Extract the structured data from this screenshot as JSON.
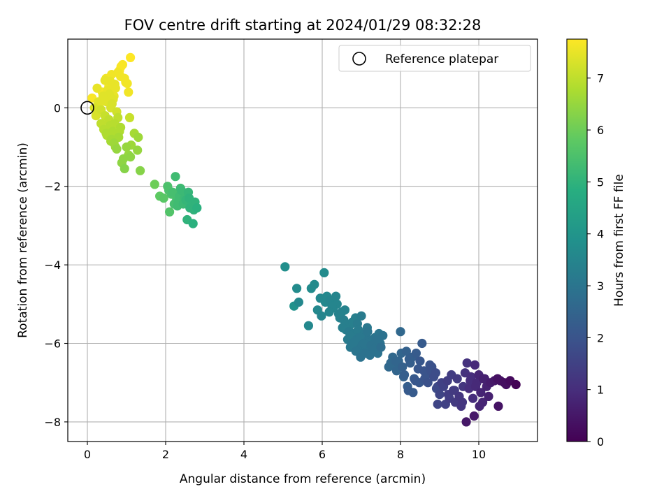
{
  "chart_data": {
    "type": "scatter",
    "title": "FOV centre drift starting at 2024/01/29 08:32:28",
    "xlabel": "Angular distance from reference (arcmin)",
    "ylabel": "Rotation from reference (arcmin)",
    "xlim": [
      -0.5,
      11.5
    ],
    "ylim": [
      -8.5,
      1.75
    ],
    "xticks": [
      0,
      2,
      4,
      6,
      8,
      10
    ],
    "yticks": [
      -8,
      -6,
      -4,
      -2,
      0
    ],
    "grid": true,
    "legend": {
      "placement": "top-right",
      "entries": [
        {
          "label": "Reference platepar",
          "marker": "open-circle"
        }
      ]
    },
    "reference_point": {
      "x": 0,
      "y": 0
    },
    "colorbar": {
      "label": "Hours from first FF file",
      "range": [
        0,
        7.75
      ],
      "ticks": [
        0,
        1,
        2,
        3,
        4,
        5,
        6,
        7
      ],
      "colormap": "viridis"
    },
    "series": [
      {
        "x": [
          0.12,
          0.22,
          0.3,
          0.38,
          0.45,
          0.5,
          0.55,
          0.62,
          0.68,
          0.75,
          0.82,
          0.9,
          0.98,
          1.05,
          1.1,
          0.25,
          0.35,
          0.42,
          0.48,
          0.56,
          0.63,
          0.7,
          0.78,
          0.86,
          0.95,
          1.02,
          1.08,
          0.18,
          0.28,
          0.4,
          0.52,
          0.6,
          0.72,
          0.85,
          0.58,
          0.66
        ],
        "y": [
          0.25,
          -0.2,
          0.05,
          0.4,
          0.7,
          0.15,
          0.55,
          0.85,
          0.3,
          -0.1,
          0.95,
          1.1,
          0.65,
          0.4,
          1.28,
          0.5,
          -0.05,
          0.2,
          0.75,
          0.35,
          0.1,
          0.6,
          0.9,
          1.05,
          0.75,
          0.62,
          -0.25,
          0.0,
          0.15,
          0.3,
          0.45,
          0.0,
          0.5,
          0.8,
          0.68,
          0.22
        ],
        "t": [
          7.7,
          7.3,
          7.5,
          7.6,
          7.5,
          7.4,
          7.6,
          7.6,
          7.5,
          7.2,
          7.7,
          7.7,
          7.6,
          7.6,
          7.75,
          7.5,
          7.2,
          7.4,
          7.6,
          7.4,
          7.3,
          7.5,
          7.6,
          7.7,
          7.6,
          7.6,
          7.1,
          7.3,
          7.4,
          7.4,
          7.5,
          7.3,
          7.5,
          7.6,
          7.5,
          7.4
        ]
      },
      {
        "x": [
          0.35,
          0.42,
          0.5,
          0.55,
          0.6,
          0.65,
          0.72,
          0.8,
          0.88,
          0.95,
          1.05,
          1.12,
          1.2,
          1.3,
          1.35,
          0.45,
          0.58,
          0.68,
          0.75,
          0.85,
          0.92,
          1.0,
          1.28,
          1.1,
          0.62,
          0.7,
          0.78,
          0.48,
          0.55,
          0.82
        ],
        "y": [
          -0.4,
          -0.55,
          -0.7,
          -0.3,
          -0.85,
          -0.6,
          -1.0,
          -0.75,
          -1.4,
          -1.55,
          -1.2,
          -0.95,
          -0.65,
          -0.75,
          -1.6,
          -0.2,
          -0.45,
          -0.9,
          -1.05,
          -0.5,
          -1.3,
          -1.0,
          -1.08,
          -1.25,
          -0.8,
          -0.4,
          -0.25,
          -0.65,
          -0.35,
          -0.6
        ],
        "t": [
          7.0,
          6.9,
          6.8,
          7.0,
          6.7,
          6.8,
          6.6,
          6.7,
          6.4,
          6.3,
          6.5,
          6.6,
          6.7,
          6.6,
          6.3,
          7.1,
          6.9,
          6.6,
          6.5,
          6.8,
          6.4,
          6.5,
          6.5,
          6.4,
          6.7,
          6.9,
          7.0,
          6.8,
          7.0,
          6.8
        ]
      },
      {
        "x": [
          1.72,
          1.85,
          1.95,
          2.05,
          2.1,
          2.18,
          2.25,
          2.32,
          2.4,
          2.48,
          2.55,
          2.62,
          2.7,
          2.75,
          2.8,
          2.15,
          2.28,
          2.35,
          2.45,
          2.58,
          2.65,
          2.72,
          2.08,
          2.38,
          2.52,
          2.22,
          2.6,
          2.3
        ],
        "y": [
          -1.95,
          -2.25,
          -2.3,
          -2.0,
          -2.65,
          -2.15,
          -1.75,
          -2.4,
          -2.1,
          -2.3,
          -2.85,
          -2.55,
          -2.95,
          -2.4,
          -2.55,
          -2.2,
          -2.35,
          -2.25,
          -2.45,
          -2.15,
          -2.5,
          -2.6,
          -2.1,
          -2.05,
          -2.35,
          -2.45,
          -2.3,
          -2.5
        ],
        "t": [
          6.0,
          5.8,
          5.7,
          5.5,
          5.6,
          5.4,
          5.3,
          5.3,
          5.2,
          5.2,
          5.0,
          5.0,
          4.9,
          5.0,
          4.9,
          5.5,
          5.4,
          5.3,
          5.2,
          5.1,
          5.1,
          5.0,
          5.5,
          5.3,
          5.1,
          5.4,
          5.0,
          5.3
        ]
      },
      {
        "x": [
          5.05,
          5.28,
          5.35,
          5.4,
          5.65,
          5.72,
          5.8,
          5.88,
          5.95,
          6.05,
          6.12,
          6.2,
          6.28,
          6.35,
          6.42,
          6.5,
          6.55,
          6.6,
          6.65,
          6.7,
          6.75,
          6.8,
          6.85,
          6.9,
          6.95,
          7.0,
          7.05,
          7.1,
          7.15,
          7.2,
          7.25,
          7.3,
          7.35,
          7.4,
          7.45,
          7.5,
          7.55,
          6.58,
          6.62,
          6.68,
          6.72,
          6.78,
          6.82,
          6.88,
          6.92,
          6.98,
          7.02,
          7.08,
          7.12,
          7.18,
          7.22,
          6.45,
          6.52,
          6.38,
          7.28,
          7.32,
          7.42,
          7.48,
          6.25,
          6.18,
          6.08,
          5.98,
          6.96,
          7.06,
          7.16,
          6.72,
          6.86,
          7.38
        ],
        "y": [
          -4.05,
          -5.05,
          -4.6,
          -4.95,
          -5.55,
          -4.6,
          -4.5,
          -5.15,
          -4.85,
          -4.2,
          -4.8,
          -4.9,
          -5.1,
          -4.8,
          -5.25,
          -5.2,
          -5.4,
          -5.65,
          -5.9,
          -5.55,
          -6.0,
          -5.75,
          -5.35,
          -5.5,
          -6.15,
          -5.3,
          -5.8,
          -6.25,
          -5.6,
          -5.95,
          -6.05,
          -6.2,
          -5.85,
          -6.0,
          -5.75,
          -6.1,
          -5.8,
          -5.15,
          -5.5,
          -5.7,
          -6.1,
          -5.45,
          -6.0,
          -5.9,
          -5.65,
          -6.35,
          -6.05,
          -5.75,
          -6.1,
          -5.9,
          -6.3,
          -5.35,
          -5.6,
          -5.0,
          -5.95,
          -6.15,
          -6.25,
          -6.0,
          -5.05,
          -5.2,
          -4.95,
          -5.3,
          -5.85,
          -6.0,
          -5.7,
          -5.8,
          -6.2,
          -5.9
        ],
        "t": [
          3.8,
          3.9,
          3.7,
          3.6,
          3.6,
          3.7,
          3.7,
          3.6,
          3.6,
          3.7,
          3.6,
          3.5,
          3.5,
          3.5,
          3.4,
          3.4,
          3.3,
          3.3,
          3.2,
          3.3,
          3.1,
          3.2,
          3.3,
          3.2,
          3.0,
          3.2,
          3.1,
          2.9,
          3.1,
          3.0,
          2.9,
          2.9,
          3.0,
          2.9,
          3.0,
          2.8,
          2.9,
          3.4,
          3.3,
          3.2,
          3.1,
          3.3,
          3.1,
          3.1,
          3.2,
          2.9,
          3.0,
          3.1,
          3.0,
          3.0,
          2.9,
          3.4,
          3.3,
          3.5,
          3.0,
          2.9,
          2.9,
          2.9,
          3.5,
          3.5,
          3.6,
          3.5,
          3.1,
          3.0,
          3.0,
          3.2,
          3.0,
          2.9
        ]
      },
      {
        "x": [
          7.7,
          7.8,
          7.85,
          7.9,
          7.95,
          8.0,
          8.05,
          8.1,
          8.15,
          8.2,
          8.25,
          8.3,
          8.35,
          8.4,
          8.45,
          8.5,
          8.55,
          8.6,
          8.65,
          8.7,
          8.75,
          8.8,
          8.85,
          8.9,
          8.95,
          7.75,
          7.88,
          8.02,
          8.18,
          8.32,
          8.48,
          8.62,
          8.78,
          8.92,
          8.08,
          8.22,
          8.38
        ],
        "y": [
          -6.6,
          -6.35,
          -6.55,
          -6.7,
          -6.45,
          -5.7,
          -6.6,
          -6.8,
          -6.2,
          -7.2,
          -6.5,
          -6.35,
          -6.9,
          -6.25,
          -6.65,
          -6.45,
          -6.0,
          -6.7,
          -6.8,
          -7.0,
          -6.55,
          -6.6,
          -6.85,
          -6.75,
          -7.1,
          -6.5,
          -6.45,
          -6.25,
          -7.1,
          -7.25,
          -7.0,
          -6.9,
          -6.7,
          -7.15,
          -6.85,
          -6.4,
          -6.95
        ],
        "t": [
          2.6,
          2.6,
          2.6,
          2.5,
          2.5,
          2.6,
          2.4,
          2.3,
          2.4,
          2.2,
          2.3,
          2.3,
          2.2,
          2.2,
          2.1,
          2.1,
          2.2,
          2.0,
          2.0,
          1.9,
          2.0,
          1.9,
          1.8,
          1.8,
          1.7,
          2.6,
          2.5,
          2.5,
          2.3,
          2.2,
          2.1,
          2.0,
          1.9,
          1.8,
          2.4,
          2.3,
          2.1
        ]
      },
      {
        "x": [
          8.95,
          9.0,
          9.05,
          9.1,
          9.15,
          9.2,
          9.25,
          9.3,
          9.35,
          9.4,
          9.45,
          9.5,
          9.55,
          9.6,
          9.65,
          9.7,
          9.75,
          9.8,
          9.85,
          9.9,
          9.95,
          10.0,
          10.05,
          10.1,
          10.15,
          10.2,
          10.25,
          10.3,
          10.4,
          10.5,
          10.55,
          10.65,
          10.7,
          10.8,
          10.95,
          9.68,
          9.88,
          10.48,
          9.22,
          9.58,
          9.78,
          10.02,
          10.12,
          9.38,
          9.92
        ],
        "y": [
          -7.55,
          -7.3,
          -7.0,
          -7.1,
          -7.55,
          -6.95,
          -7.4,
          -6.8,
          -7.2,
          -7.5,
          -6.9,
          -7.35,
          -7.6,
          -7.1,
          -6.75,
          -6.5,
          -7.15,
          -6.85,
          -7.4,
          -6.55,
          -7.0,
          -6.8,
          -7.25,
          -7.5,
          -6.9,
          -7.1,
          -7.35,
          -7.0,
          -6.95,
          -7.6,
          -6.95,
          -7.0,
          -7.05,
          -6.95,
          -7.05,
          -8.0,
          -7.85,
          -6.9,
          -7.3,
          -7.5,
          -6.95,
          -7.6,
          -6.9,
          -7.2,
          -7.1
        ],
        "t": [
          1.6,
          1.6,
          1.5,
          1.5,
          1.5,
          1.4,
          1.4,
          1.4,
          1.3,
          1.3,
          1.3,
          1.2,
          1.2,
          1.2,
          1.1,
          1.1,
          1.0,
          1.0,
          1.0,
          0.9,
          0.9,
          0.8,
          0.8,
          0.8,
          0.7,
          0.7,
          0.7,
          0.6,
          0.5,
          0.4,
          0.4,
          0.3,
          0.3,
          0.2,
          0.05,
          0.5,
          0.5,
          0.35,
          1.4,
          1.2,
          1.0,
          0.8,
          0.7,
          1.3,
          0.9
        ]
      }
    ]
  }
}
